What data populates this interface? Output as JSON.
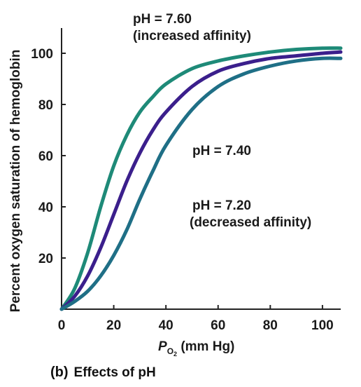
{
  "chart_data": {
    "type": "line",
    "title": "",
    "xlabel_main": "P",
    "xlabel_sub": "O",
    "xlabel_sub2": "2",
    "xlabel_unit": " (mm Hg)",
    "ylabel": "Percent oxygen saturation of hemoglobin",
    "xlim": [
      0,
      107
    ],
    "ylim": [
      0,
      108
    ],
    "xticks": [
      0,
      20,
      40,
      60,
      80,
      100
    ],
    "yticks": [
      20,
      40,
      60,
      80,
      100
    ],
    "grid": false,
    "series": [
      {
        "name": "pH = 7.60",
        "color": "#1e8a78",
        "x": [
          0,
          5,
          10,
          15,
          20,
          25,
          30,
          35,
          40,
          50,
          60,
          70,
          80,
          90,
          100,
          107
        ],
        "y": [
          0,
          8,
          22,
          40,
          56,
          68,
          77,
          83,
          88,
          94,
          97,
          99,
          100.5,
          101.5,
          102,
          102
        ]
      },
      {
        "name": "pH = 7.40",
        "color": "#3b1f8c",
        "x": [
          0,
          5,
          10,
          15,
          20,
          25,
          30,
          35,
          40,
          50,
          60,
          70,
          80,
          90,
          100,
          107
        ],
        "y": [
          0,
          5,
          13,
          24,
          37,
          50,
          61,
          70,
          77,
          87,
          93,
          96,
          98,
          99,
          100,
          100.5
        ]
      },
      {
        "name": "pH = 7.20",
        "color": "#1f6f86",
        "x": [
          0,
          5,
          10,
          15,
          20,
          25,
          30,
          35,
          40,
          50,
          60,
          70,
          80,
          90,
          100,
          107
        ],
        "y": [
          0,
          3,
          7,
          13,
          21,
          31,
          43,
          54,
          64,
          78,
          87,
          92,
          95,
          97,
          98,
          98
        ]
      }
    ],
    "annotations": {
      "high_line1": "pH = 7.60",
      "high_line2": "(increased affinity)",
      "mid_line1": "pH = 7.40",
      "low_line1": "pH = 7.20",
      "low_line2": "(decreased affinity)"
    }
  },
  "caption": {
    "letter": "(b)",
    "text": "Effects of pH"
  }
}
